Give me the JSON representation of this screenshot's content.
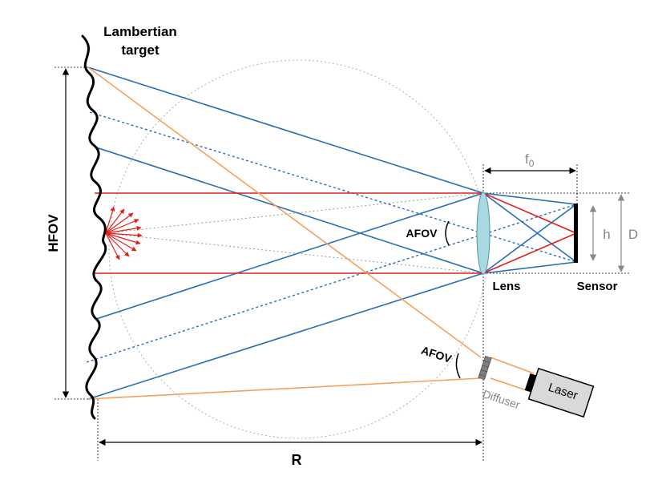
{
  "labels": {
    "target_line1": "Lambertian",
    "target_line2": "target",
    "hfov": "HFOV",
    "afov_lens": "AFOV",
    "afov_diffuser": "AFOV",
    "lens": "Lens",
    "sensor": "Sensor",
    "f0_base": "f",
    "f0_sub": "0",
    "h": "h",
    "D": "D",
    "R": "R",
    "diffuser": "Diffuser",
    "laser": "Laser"
  },
  "colors": {
    "blue_ray": "#2a6db5",
    "red_ray": "#e0201c",
    "orange_ray": "#f4a15d",
    "lens_fill": "#a9d8e0",
    "gray_dim": "#888888",
    "laser_body": "#d9d9d9"
  }
}
